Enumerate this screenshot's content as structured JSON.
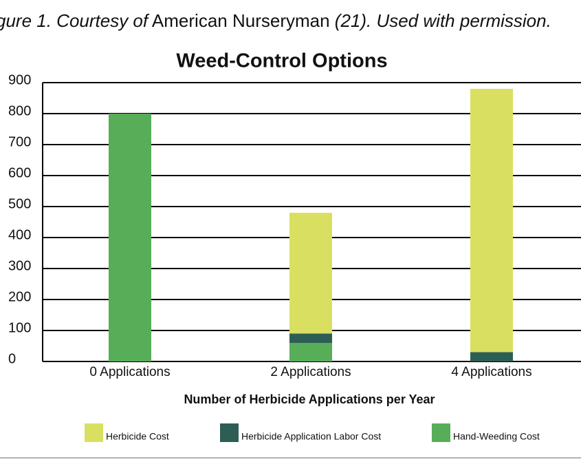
{
  "caption": [
    "gure 1. Courtesy of",
    "American Nurseryman",
    "(21). Used with permission."
  ],
  "chart_data": {
    "type": "stacked_bar",
    "title": "Weed-Control Options",
    "x_label": "Number of Herbicide Applications per Year",
    "categories": [
      "0 Applications",
      "2 Applications",
      "4 Applications"
    ],
    "series": [
      {
        "name": "Hand-Weeding Cost",
        "color": "#58ad58",
        "values": [
          800,
          60,
          0
        ]
      },
      {
        "name": "Herbicide Application Labor Cost",
        "color": "#2d5e55",
        "values": [
          0,
          30,
          30
        ]
      },
      {
        "name": "Herbicide Cost",
        "color": "#d9e061",
        "values": [
          0,
          390,
          850
        ]
      }
    ],
    "legend_order": [
      2,
      1,
      0
    ],
    "ylim": [
      0,
      900
    ],
    "yticks": [
      0,
      100,
      200,
      300,
      400,
      500,
      600,
      700,
      800,
      900
    ],
    "grid": true
  }
}
